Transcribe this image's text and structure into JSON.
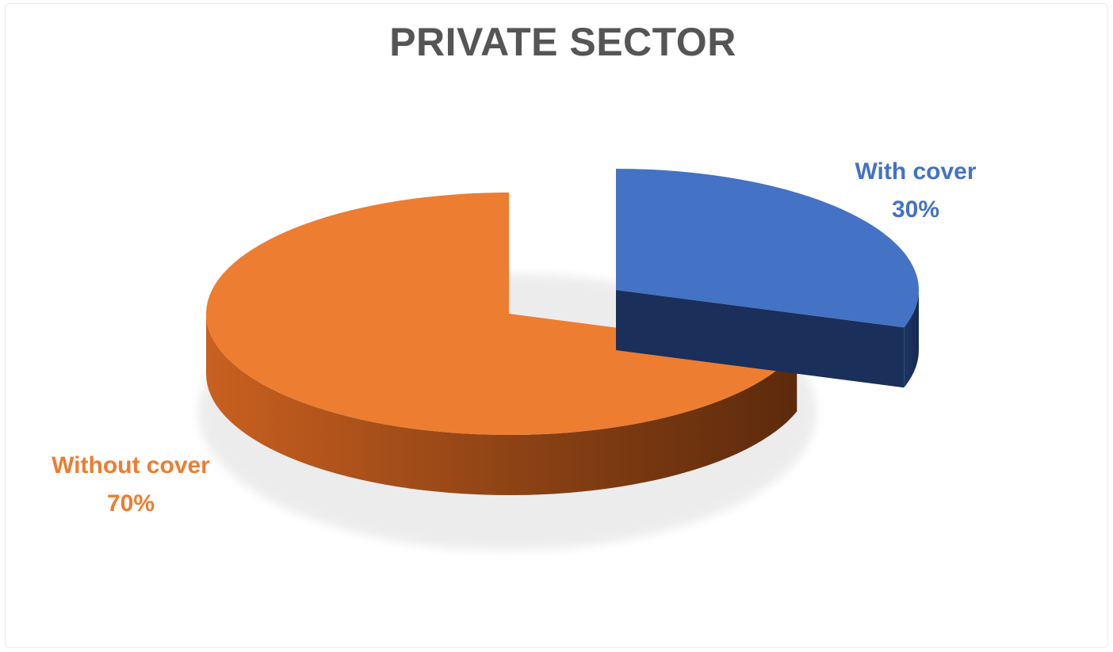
{
  "chart_data": {
    "type": "pie",
    "title": "PRIVATE SECTOR",
    "style": "3d-exploded",
    "categories": [
      "With cover",
      "Without cover"
    ],
    "values": [
      30,
      70
    ],
    "value_labels": [
      "30%",
      "70%"
    ],
    "colors": [
      "#4472c4",
      "#ed7d31"
    ]
  }
}
